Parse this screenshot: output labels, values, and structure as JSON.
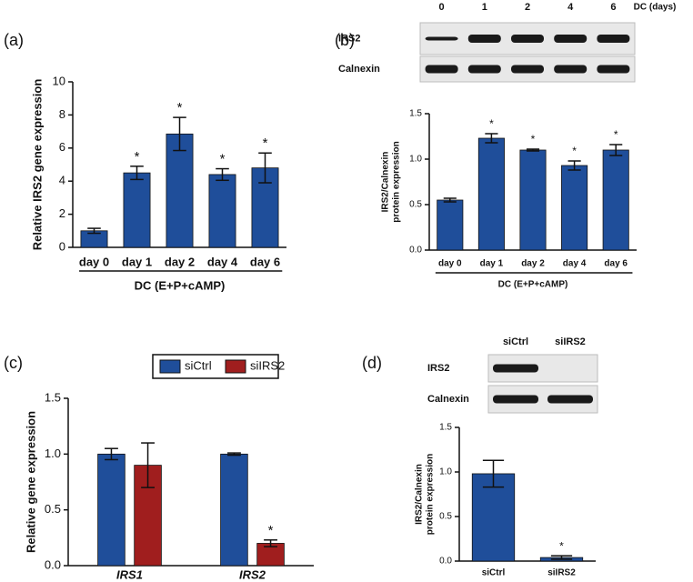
{
  "chart_data": [
    {
      "type": "bar",
      "panel_label": "(a)",
      "y_label": [
        "Relative IRS2 gene expression"
      ],
      "x_label": "DC (E+P+cAMP)",
      "categories": [
        "day 0",
        "day 1",
        "day 2",
        "day 4",
        "day 6"
      ],
      "values": [
        1.0,
        4.5,
        6.85,
        4.4,
        4.8
      ],
      "errors": [
        0.15,
        0.4,
        1.0,
        0.35,
        0.9
      ],
      "significance": [
        null,
        "*",
        "*",
        "*",
        "*"
      ],
      "color": "#1f4e9a",
      "ylim": [
        0,
        10
      ],
      "yticks": [
        0,
        2,
        4,
        6,
        8,
        10
      ]
    },
    {
      "type": "bar",
      "panel_label": "(b)",
      "blot_lanes": [
        "0",
        "1",
        "2",
        "4",
        "6"
      ],
      "blot_lanes_title": "DC (days)",
      "blot_rows": [
        "IRS2",
        "Calnexin"
      ],
      "y_label": [
        "IRS2/Calnexin",
        "protein expression"
      ],
      "x_label": "DC (E+P+cAMP)",
      "categories": [
        "day 0",
        "day 1",
        "day 2",
        "day 4",
        "day 6"
      ],
      "values": [
        0.55,
        1.23,
        1.1,
        0.93,
        1.1
      ],
      "errors": [
        0.02,
        0.05,
        0.01,
        0.05,
        0.06
      ],
      "significance": [
        null,
        "*",
        "*",
        "*",
        "*"
      ],
      "color": "#1f4e9a",
      "ylim": [
        0,
        1.5
      ],
      "yticks": [
        {
          "value": 0,
          "label": "0.0"
        },
        {
          "value": 0.5,
          "label": "0.5"
        },
        {
          "value": 1,
          "label": "1.0"
        },
        {
          "value": 1.5,
          "label": "1.5"
        }
      ]
    },
    {
      "type": "grouped_bar",
      "panel_label": "(c)",
      "y_label": [
        "Relative gene expression"
      ],
      "categories": [
        "IRS1",
        "IRS2"
      ],
      "series": [
        {
          "name": "siCtrl",
          "color": "#1f4e9a",
          "values": [
            1.0,
            1.0
          ],
          "errors": [
            0.05,
            0.01
          ],
          "significance": [
            null,
            null
          ]
        },
        {
          "name": "siIRS2",
          "color": "#a01e1e",
          "values": [
            0.9,
            0.2
          ],
          "errors": [
            0.2,
            0.03
          ],
          "significance": [
            null,
            "*"
          ]
        }
      ],
      "ylim": [
        0,
        1.5
      ],
      "yticks": [
        {
          "value": 0,
          "label": "0.0"
        },
        {
          "value": 0.5,
          "label": "0.5"
        },
        {
          "value": 1,
          "label": "1.0"
        },
        {
          "value": 1.5,
          "label": "1.5"
        }
      ]
    },
    {
      "type": "bar",
      "panel_label": "(d)",
      "blot_lanes": [
        "siCtrl",
        "siIRS2"
      ],
      "blot_rows": [
        "IRS2",
        "Calnexin"
      ],
      "y_label": [
        "IRS2/Calnexin",
        "protein expression"
      ],
      "categories": [
        "siCtrl",
        "siIRS2"
      ],
      "values": [
        0.98,
        0.04
      ],
      "errors": [
        0.15,
        0.02
      ],
      "significance": [
        null,
        "*"
      ],
      "color": "#1f4e9a",
      "ylim": [
        0,
        1.5
      ],
      "yticks": [
        {
          "value": 0,
          "label": "0.0"
        },
        {
          "value": 0.5,
          "label": "0.5"
        },
        {
          "value": 1,
          "label": "1.0"
        },
        {
          "value": 1.5,
          "label": "1.5"
        }
      ]
    }
  ]
}
